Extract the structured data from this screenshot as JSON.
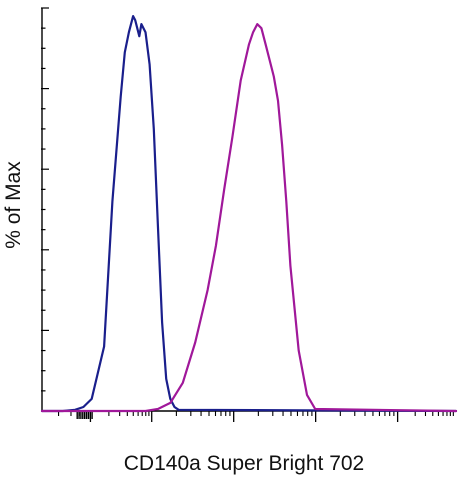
{
  "chart_data": {
    "type": "line",
    "xlabel": "CD140a Super Bright 702",
    "ylabel": "% of Max",
    "x_scale": "biexponential (unlabeled)",
    "y_tick_labels": "none",
    "x_tick_labels": "none",
    "ylim": [
      0,
      100
    ],
    "grid": false,
    "legend": "none",
    "series": [
      {
        "color": "#1a1f8c",
        "x": [
          0.0,
          0.05,
          0.08,
          0.1,
          0.12,
          0.15,
          0.17,
          0.19,
          0.2,
          0.21,
          0.22,
          0.225,
          0.235,
          0.24,
          0.25,
          0.26,
          0.27,
          0.28,
          0.29,
          0.3,
          0.31,
          0.32,
          0.33,
          1.0
        ],
        "y": [
          0.0,
          0.0,
          0.3,
          1.0,
          3.0,
          16.0,
          52.0,
          78.0,
          89.0,
          94.0,
          98.0,
          97.0,
          93.0,
          96.0,
          94.0,
          86.0,
          70.0,
          46.0,
          22.0,
          8.0,
          3.0,
          1.0,
          0.3,
          0.0
        ]
      },
      {
        "color": "#a0189a",
        "x": [
          0.0,
          0.25,
          0.28,
          0.31,
          0.34,
          0.37,
          0.4,
          0.42,
          0.44,
          0.46,
          0.48,
          0.5,
          0.51,
          0.52,
          0.53,
          0.54,
          0.55,
          0.56,
          0.57,
          0.58,
          0.59,
          0.6,
          0.62,
          0.64,
          0.66,
          1.0
        ],
        "y": [
          0.0,
          0.0,
          0.5,
          2.0,
          7.0,
          17.0,
          30.0,
          41.0,
          55.0,
          68.0,
          82.0,
          91.0,
          94.0,
          96.0,
          95.0,
          91.0,
          87.0,
          83.0,
          77.0,
          66.0,
          52.0,
          36.0,
          15.0,
          4.0,
          0.5,
          0.0
        ]
      }
    ]
  }
}
